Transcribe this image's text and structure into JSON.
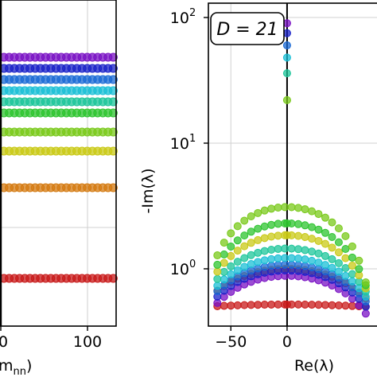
{
  "chart_data": [
    {
      "type": "scatter",
      "panel": "left",
      "xlabel_visible": "m",
      "xlabel_sub": "nn",
      "xlabel_suffix": ")",
      "xticks": [
        {
          "value": 0,
          "label": "0"
        },
        {
          "value": 100,
          "label": "100"
        }
      ],
      "xlim": [
        0,
        133
      ],
      "grid": true,
      "rows": [
        {
          "level": 1,
          "color": "#7a12c4"
        },
        {
          "level": 2,
          "color": "#1a22c8"
        },
        {
          "level": 3,
          "color": "#1a6ad6"
        },
        {
          "level": 4,
          "color": "#19bfd6"
        },
        {
          "level": 5,
          "color": "#1cc59a"
        },
        {
          "level": 6,
          "color": "#2ec42f"
        },
        {
          "level": 7,
          "color": "#79c91a"
        },
        {
          "level": 8,
          "color": "#c9c916"
        },
        {
          "level": 9,
          "color": "#d47a10"
        },
        {
          "level": 10,
          "color": "#c81a1a"
        }
      ],
      "x_values": [
        0,
        6,
        12,
        18,
        24,
        30,
        36,
        42,
        48,
        54,
        60,
        66,
        72,
        78,
        84,
        90,
        96,
        102,
        108,
        114,
        120,
        126
      ]
    },
    {
      "type": "scatter",
      "panel": "right",
      "annotation": "D = 21",
      "xlabel": "Re(λ)",
      "ylabel": "-Im(λ)",
      "yscale": "log",
      "xlim": [
        -70,
        80
      ],
      "ylim": [
        0.35,
        130
      ],
      "xticks": [
        {
          "value": -50,
          "label": "−50"
        },
        {
          "value": 0,
          "label": "0"
        }
      ],
      "yticks": [
        {
          "value": 1,
          "base": "10",
          "exp": "0"
        },
        {
          "value": 10,
          "base": "10",
          "exp": "1"
        },
        {
          "value": 100,
          "base": "10",
          "exp": "2"
        }
      ],
      "grid": true,
      "series": [
        {
          "color": "#c81a1a",
          "peak": 0.52,
          "edge": 0.5,
          "spike": null
        },
        {
          "color": "#d47a10",
          "peak": 1.0,
          "edge": 0.58,
          "spike": null
        },
        {
          "color": "#7a12c4",
          "peak": 0.88,
          "edge": 0.44,
          "spike": 90
        },
        {
          "color": "#1a22c8",
          "peak": 0.97,
          "edge": 0.5,
          "spike": 75
        },
        {
          "color": "#1a6ad6",
          "peak": 1.08,
          "edge": 0.55,
          "spike": 60
        },
        {
          "color": "#19bfd6",
          "peak": 1.22,
          "edge": 0.6,
          "spike": 48
        },
        {
          "color": "#1cc59a",
          "peak": 1.45,
          "edge": 0.66,
          "spike": 36
        },
        {
          "color": "#c9c916",
          "peak": 1.85,
          "edge": 0.7,
          "spike": null
        },
        {
          "color": "#2ec42f",
          "peak": 2.3,
          "edge": 0.74,
          "spike": null
        },
        {
          "color": "#79c91a",
          "peak": 3.1,
          "edge": 0.78,
          "spike": 22
        }
      ],
      "re_values": [
        -62,
        -56,
        -50,
        -44,
        -38,
        -32,
        -26,
        -20,
        -14,
        -8,
        -2,
        0,
        4,
        10,
        16,
        22,
        28,
        34,
        40,
        46,
        52,
        58,
        64,
        70
      ]
    }
  ]
}
